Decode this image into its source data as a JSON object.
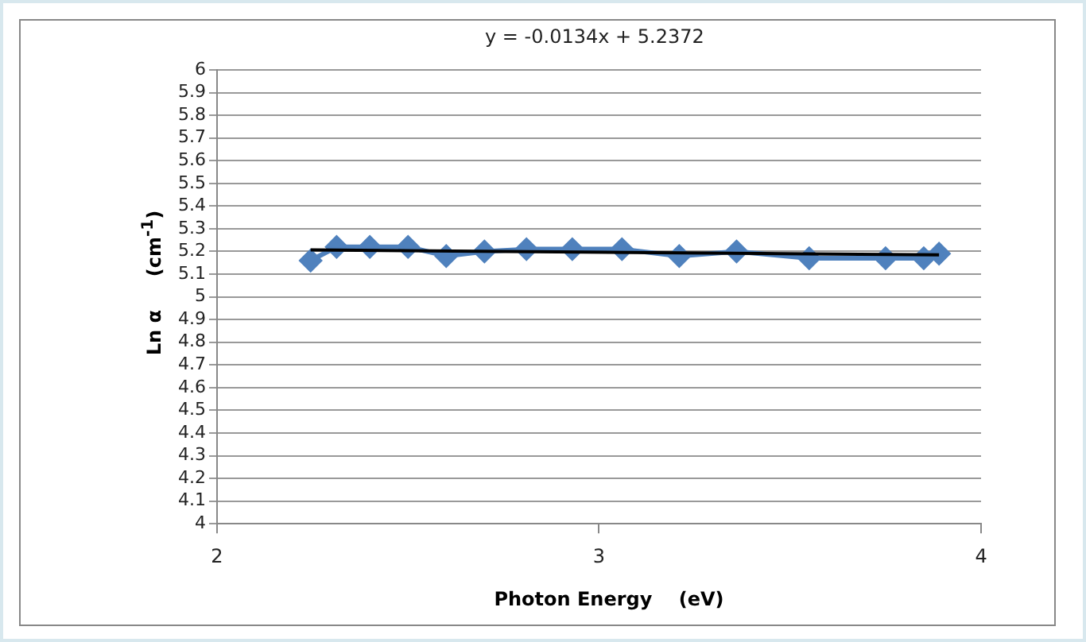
{
  "chart_data": {
    "type": "line",
    "xlabel": "Photon Energy    (eV)",
    "ylabel": "Ln α     (cm$^{-1}$)",
    "annotations": [
      "y = -0.0134x + 5.2372"
    ],
    "series": [
      {
        "color": "#4f81bd",
        "marker": "diamond",
        "x": [
          2.245,
          2.313,
          2.4,
          2.5,
          2.6,
          2.7,
          2.81,
          2.93,
          3.06,
          3.21,
          3.36,
          3.55,
          3.75,
          3.85,
          3.89
        ],
        "values": [
          5.16,
          5.22,
          5.22,
          5.22,
          5.18,
          5.2,
          5.21,
          5.21,
          5.21,
          5.18,
          5.2,
          5.17,
          5.17,
          5.17,
          5.19
        ]
      },
      {
        "color": "#000000",
        "marker": "none",
        "x": [
          2.245,
          3.89
        ],
        "values": [
          5.207,
          5.185
        ]
      }
    ],
    "xlim": [
      2,
      4
    ],
    "xticks": [
      2,
      3,
      4
    ],
    "ylim": [
      4,
      6
    ],
    "yticks": [
      4,
      4.1,
      4.2,
      4.3,
      4.4,
      4.5,
      4.6,
      4.7,
      4.8,
      4.9,
      5,
      5.1,
      5.2,
      5.3,
      5.4,
      5.5,
      5.6,
      5.7,
      5.8,
      5.9,
      6
    ],
    "grid": "y",
    "legend": false
  }
}
